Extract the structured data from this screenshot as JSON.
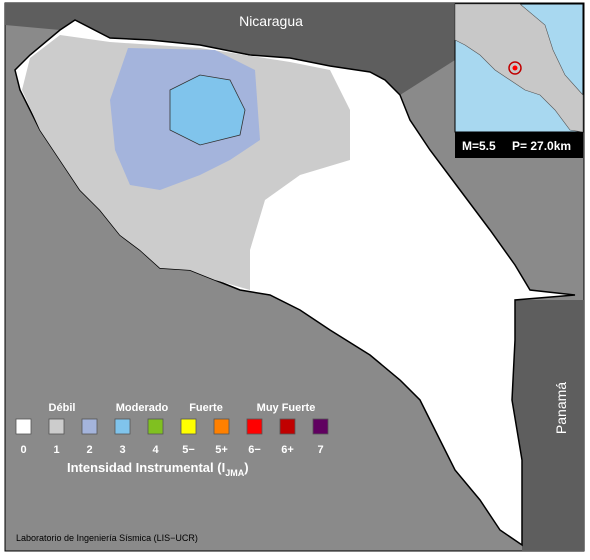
{
  "map": {
    "countries": {
      "north": "Nicaragua",
      "east": "Panamá"
    },
    "inset": {
      "magnitude": "M=5.5",
      "depth": "P= 27.0km"
    },
    "legend": {
      "groups": [
        "Débil",
        "Moderado",
        "Fuerte",
        "Muy Fuerte"
      ],
      "levels": [
        {
          "label": "0",
          "color": "#ffffff"
        },
        {
          "label": "1",
          "color": "#cccccc"
        },
        {
          "label": "2",
          "color": "#a4b4dc"
        },
        {
          "label": "3",
          "color": "#80c4ec"
        },
        {
          "label": "4",
          "color": "#80c020"
        },
        {
          "label": "5−",
          "color": "#ffff00"
        },
        {
          "label": "5+",
          "color": "#ff8000"
        },
        {
          "label": "6−",
          "color": "#ff0000"
        },
        {
          "label": "6+",
          "color": "#c00000"
        },
        {
          "label": "7",
          "color": "#600060"
        }
      ],
      "title": "Intensidad Instrumental (I",
      "title_sub": "JMA",
      "title_end": ")"
    },
    "credit": "Laboratorio de Ingeniería Sísmica (LIS−UCR)"
  }
}
